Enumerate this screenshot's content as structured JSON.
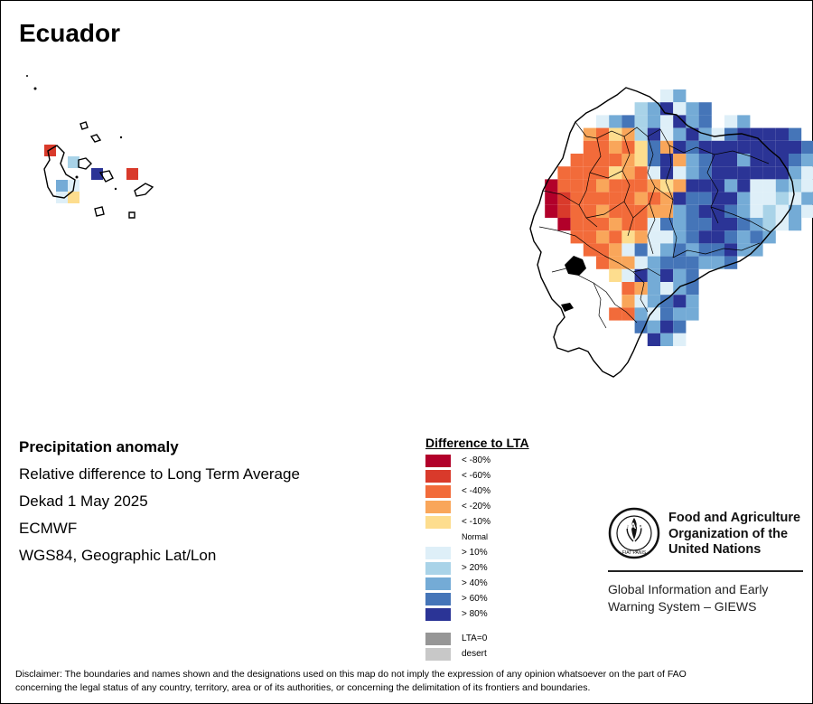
{
  "map": {
    "title": "Ecuador",
    "colors": {
      "lt80": "#b2002a",
      "lt60": "#d93a2b",
      "lt40": "#f26b3a",
      "lt20": "#f9a65a",
      "lt10": "#fddd8e",
      "normal": "#ffffff",
      "gt10": "#deeff8",
      "gt20": "#a9d3e8",
      "gt40": "#74abd6",
      "gt60": "#4575b8",
      "gt80": "#2b3496",
      "lta0": "#969696",
      "desert": "#c8c8c8"
    }
  },
  "info": {
    "heading": "Precipitation anomaly",
    "line1": "Relative difference to Long Term Average",
    "line2": "Dekad 1 May 2025",
    "line3": "ECMWF",
    "line4": "WGS84, Geographic Lat/Lon"
  },
  "legend": {
    "title": "Difference to LTA",
    "items": [
      {
        "label": "< -80%",
        "color": "#b2002a"
      },
      {
        "label": "< -60%",
        "color": "#d93a2b"
      },
      {
        "label": "< -40%",
        "color": "#f26b3a"
      },
      {
        "label": "< -20%",
        "color": "#f9a65a"
      },
      {
        "label": "< -10%",
        "color": "#fddd8e"
      }
    ],
    "normal_label": "Normal",
    "items_wet": [
      {
        "label": "> 10%",
        "color": "#deeff8"
      },
      {
        "label": "> 20%",
        "color": "#a9d3e8"
      },
      {
        "label": "> 40%",
        "color": "#74abd6"
      },
      {
        "label": "> 60%",
        "color": "#4575b8"
      },
      {
        "label": "> 80%",
        "color": "#2b3496"
      }
    ],
    "extra": [
      {
        "label": "LTA=0",
        "color": "#969696"
      },
      {
        "label": "desert",
        "color": "#c8c8c8"
      }
    ]
  },
  "fao": {
    "name_line1": "Food and Agriculture",
    "name_line2": "Organization of the",
    "name_line3": "United Nations",
    "giews_line1": "Global Information and Early",
    "giews_line2": "Warning System – GIEWS",
    "logo_letters": "FAO",
    "logo_motto": "FIAT PANIS"
  },
  "disclaimer": {
    "line1": "Disclaimer: The boundaries and names shown and the designations used on this map do not imply the expression of any opinion whatsoever on the part of FAO",
    "line2": "concerning the legal status of any country, territory, area or of its authorities, or concerning the delimitation of its frontiers and boundaries."
  }
}
